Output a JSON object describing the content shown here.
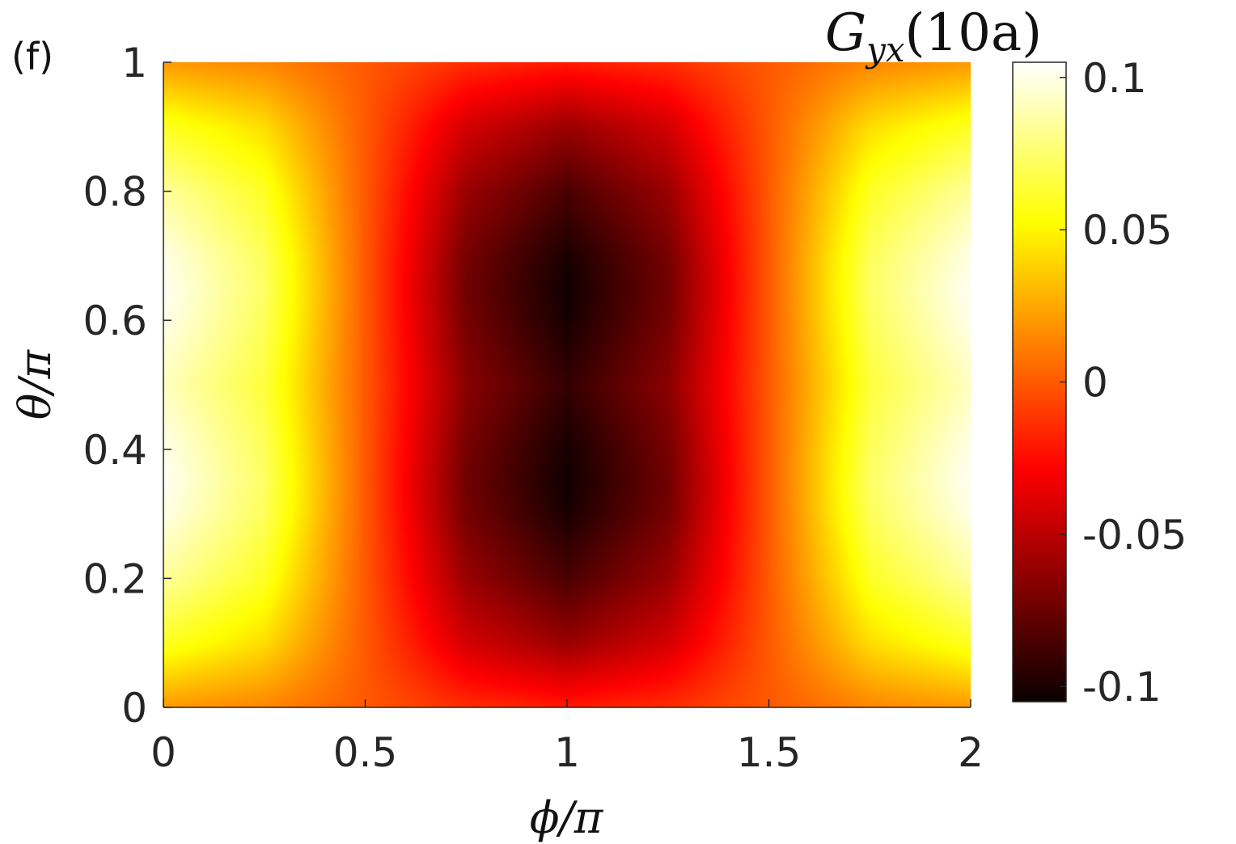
{
  "panel_label": "(f)",
  "colorbar_title": {
    "main": "G",
    "sub": "yx",
    "arg": "(10a)"
  },
  "chart_data": {
    "type": "heatmap",
    "title": "",
    "xlabel": {
      "symbol": "ϕ",
      "rest": "/π"
    },
    "ylabel": {
      "symbol": "θ",
      "rest": "/π"
    },
    "xlim": [
      0,
      2
    ],
    "ylim": [
      0,
      1
    ],
    "x_ticks": [
      0,
      0.5,
      1,
      1.5,
      2
    ],
    "x_tick_labels": [
      "0",
      "0.5",
      "1",
      "1.5",
      "2"
    ],
    "y_ticks": [
      0,
      0.2,
      0.4,
      0.6,
      0.8,
      1
    ],
    "y_tick_labels": [
      "0",
      "0.2",
      "0.4",
      "0.6",
      "0.8",
      "1"
    ],
    "colormap": "hot",
    "clim": [
      -0.105,
      0.105
    ],
    "colorbar_ticks": [
      0.1,
      0.05,
      0,
      -0.05,
      -0.1
    ],
    "colorbar_tick_labels": [
      "0.1",
      "0.05",
      "0",
      "-0.05",
      "-0.1"
    ],
    "phi_over_pi": [
      0,
      0.25,
      0.5,
      0.75,
      1,
      1.25,
      1.5,
      1.75,
      2
    ],
    "theta_over_pi": [
      0,
      0.1,
      0.2,
      0.3,
      0.35,
      0.4,
      0.5,
      0.6,
      0.65,
      0.7,
      0.8,
      0.9,
      1
    ],
    "values": [
      [
        0.02,
        0.014,
        0.0,
        -0.014,
        -0.02,
        -0.014,
        0.0,
        0.014,
        0.02
      ],
      [
        0.06,
        0.042,
        0.0,
        -0.042,
        -0.06,
        -0.042,
        0.0,
        0.042,
        0.06
      ],
      [
        0.085,
        0.06,
        0.0,
        -0.06,
        -0.085,
        -0.06,
        0.0,
        0.06,
        0.085
      ],
      [
        0.1,
        0.071,
        0.0,
        -0.071,
        -0.1,
        -0.071,
        0.0,
        0.071,
        0.1
      ],
      [
        0.103,
        0.073,
        0.0,
        -0.073,
        -0.103,
        -0.073,
        0.0,
        0.073,
        0.103
      ],
      [
        0.101,
        0.071,
        0.0,
        -0.071,
        -0.101,
        -0.071,
        0.0,
        0.071,
        0.101
      ],
      [
        0.092,
        0.065,
        0.0,
        -0.065,
        -0.092,
        -0.065,
        0.0,
        0.065,
        0.092
      ],
      [
        0.101,
        0.071,
        0.0,
        -0.071,
        -0.101,
        -0.071,
        0.0,
        0.071,
        0.101
      ],
      [
        0.103,
        0.073,
        0.0,
        -0.073,
        -0.103,
        -0.073,
        0.0,
        0.073,
        0.103
      ],
      [
        0.1,
        0.071,
        0.0,
        -0.071,
        -0.1,
        -0.071,
        0.0,
        0.071,
        0.1
      ],
      [
        0.085,
        0.06,
        0.0,
        -0.06,
        -0.085,
        -0.06,
        0.0,
        0.06,
        0.085
      ],
      [
        0.06,
        0.042,
        0.0,
        -0.042,
        -0.06,
        -0.042,
        0.0,
        0.042,
        0.06
      ],
      [
        0.02,
        0.014,
        0.0,
        -0.014,
        -0.02,
        -0.014,
        0.0,
        0.014,
        0.02
      ]
    ]
  }
}
